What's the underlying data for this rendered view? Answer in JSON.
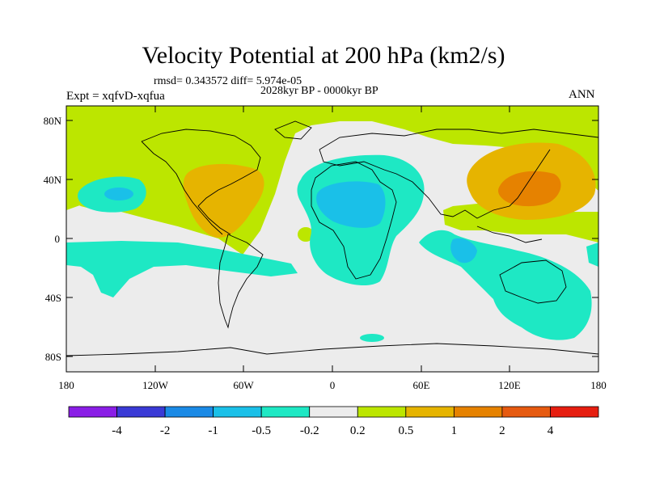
{
  "title": "Velocity Potential at 200 hPa (km2/s)",
  "stats": "rmsd= 0.343572 diff= 5.974e-05",
  "subtitle": "2028kyr BP - 0000kyr BP",
  "expt": "Expt = xqfvD-xqfua",
  "season": "ANN",
  "lat_labels": [
    "80N",
    "40N",
    "0",
    "40S",
    "80S"
  ],
  "lon_labels": [
    "180",
    "120W",
    "60W",
    "0",
    "60E",
    "120E",
    "180"
  ],
  "colorbar": {
    "labels": [
      "-4",
      "-2",
      "-1",
      "-0.5",
      "-0.2",
      "0.2",
      "0.5",
      "1",
      "2",
      "4"
    ],
    "colors": [
      "#8a1ee6",
      "#3a3ad6",
      "#1a8ae6",
      "#1ac0e8",
      "#1ee8c4",
      "#ececec",
      "#bce600",
      "#e6b400",
      "#e68200",
      "#e65a10",
      "#e61e10"
    ]
  },
  "chart_data": {
    "type": "contour-map",
    "variable": "Velocity Potential at 200 hPa",
    "units": "km2/s",
    "levels": [
      -4,
      -2,
      -1,
      -0.5,
      -0.2,
      0.2,
      0.5,
      1,
      2,
      4
    ],
    "lon_range": [
      -180,
      180
    ],
    "lat_range": [
      -90,
      90
    ],
    "regions": [
      {
        "name": "arctic-band",
        "lon": [
          -180,
          180
        ],
        "lat": [
          55,
          90
        ],
        "range": "0.2 to 0.5"
      },
      {
        "name": "east-pacific-north",
        "lon": [
          -175,
          -55
        ],
        "lat": [
          0,
          60
        ],
        "range": "0.2 to 0.5"
      },
      {
        "name": "north-america-max",
        "lon": [
          -115,
          -60
        ],
        "lat": [
          5,
          45
        ],
        "range": "0.5 to 1"
      },
      {
        "name": "east-asia-max",
        "lon": [
          90,
          175
        ],
        "lat": [
          10,
          60
        ],
        "range": "0.5 to 1"
      },
      {
        "name": "east-asia-peak",
        "lon": [
          115,
          155
        ],
        "lat": [
          20,
          45
        ],
        "range": "1 to 2"
      },
      {
        "name": "africa-min",
        "lon": [
          -25,
          65
        ],
        "lat": [
          -30,
          50
        ],
        "range": "-0.5 to -0.2"
      },
      {
        "name": "sahara-min",
        "lon": [
          -5,
          40
        ],
        "lat": [
          5,
          35
        ],
        "range": "-1 to -0.5"
      },
      {
        "name": "pacific-west-min",
        "lon": [
          -170,
          -130
        ],
        "lat": [
          20,
          45
        ],
        "range": "-0.5 to -0.2"
      },
      {
        "name": "south-pacific-min",
        "lon": [
          -180,
          -60
        ],
        "lat": [
          -45,
          -5
        ],
        "range": "-0.5 to -0.2"
      },
      {
        "name": "indian-ocean-min",
        "lon": [
          70,
          180
        ],
        "lat": [
          -75,
          5
        ],
        "range": "-0.5 to -0.2"
      },
      {
        "name": "indian-ocean-core",
        "lon": [
          85,
          105
        ],
        "lat": [
          -20,
          -5
        ],
        "range": "-1 to -0.5"
      }
    ]
  }
}
